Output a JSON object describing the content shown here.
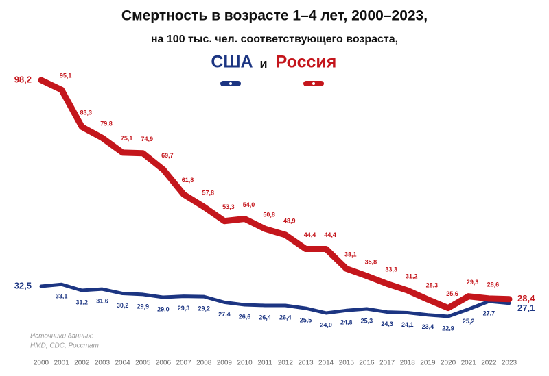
{
  "chart_data": {
    "type": "line",
    "title": "Смертность в возрасте 1–4 лет, 2000–2023,",
    "subtitle": "на 100 тыс. чел. соответствующего возраста,",
    "legend_joiner": "и",
    "source": [
      "Источники данных:",
      "HMD; CDC; Росстат"
    ],
    "categories": [
      "2000",
      "2001",
      "2002",
      "2003",
      "2004",
      "2005",
      "2006",
      "2007",
      "2008",
      "2009",
      "2010",
      "2011",
      "2012",
      "2013",
      "2014",
      "2015",
      "2016",
      "2017",
      "2018",
      "2019",
      "2020",
      "2021",
      "2022",
      "2023"
    ],
    "series": [
      {
        "name": "США",
        "color": "#1c3582",
        "values": [
          32.5,
          33.1,
          31.2,
          31.6,
          30.2,
          29.9,
          29.0,
          29.3,
          29.2,
          27.4,
          26.6,
          26.4,
          26.4,
          25.5,
          24.0,
          24.8,
          25.3,
          24.3,
          24.1,
          23.4,
          22.9,
          25.2,
          27.7,
          27.1
        ],
        "value_labels": [
          "32,5",
          "33,1",
          "31,2",
          "31,6",
          "30,2",
          "29,9",
          "29,0",
          "29,3",
          "29,2",
          "27,4",
          "26,6",
          "26,4",
          "26,4",
          "25,5",
          "24,0",
          "24,8",
          "25,3",
          "24,3",
          "24,1",
          "23,4",
          "22,9",
          "25,2",
          "27,7",
          "27,1"
        ]
      },
      {
        "name": "Россия",
        "color": "#c4161c",
        "values": [
          98.2,
          95.1,
          83.3,
          79.8,
          75.1,
          74.9,
          69.7,
          61.8,
          57.8,
          53.3,
          54.0,
          50.8,
          48.9,
          44.4,
          44.4,
          38.1,
          35.8,
          33.3,
          31.2,
          28.3,
          25.6,
          29.3,
          28.6,
          28.4
        ],
        "value_labels": [
          "98,2",
          "95,1",
          "83,3",
          "79,8",
          "75,1",
          "74,9",
          "69,7",
          "61,8",
          "57,8",
          "53,3",
          "54,0",
          "50,8",
          "48,9",
          "44,4",
          "44,4",
          "38,1",
          "35,8",
          "33,3",
          "31,2",
          "28,3",
          "25,6",
          "29,3",
          "28,6",
          "28,4"
        ]
      }
    ]
  }
}
